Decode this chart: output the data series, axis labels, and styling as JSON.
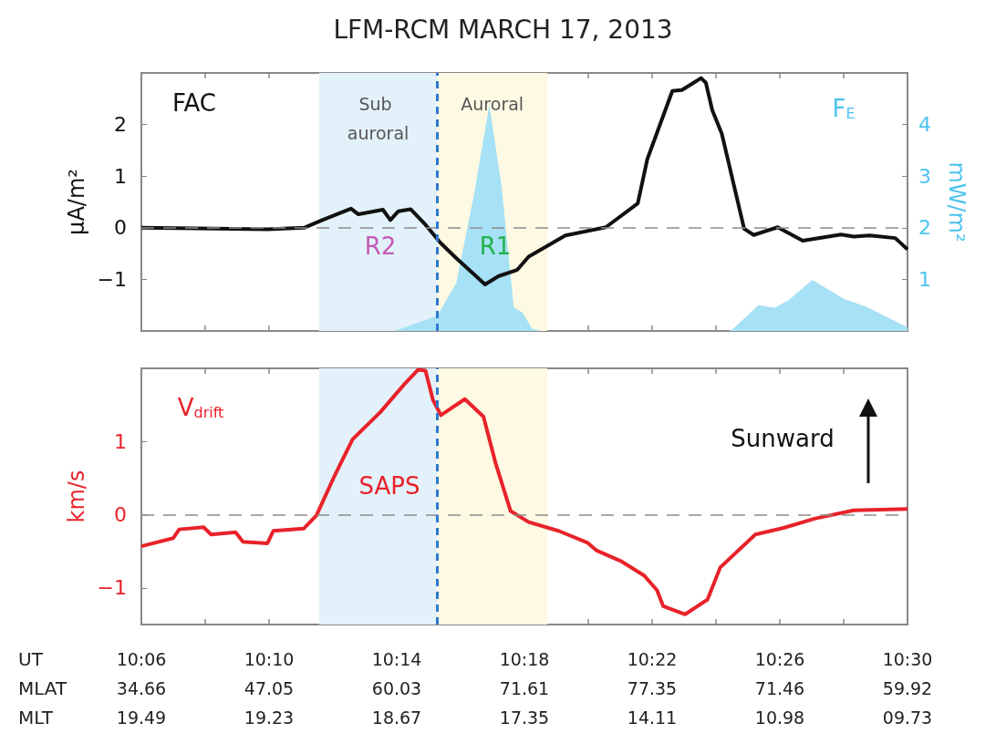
{
  "chart_data": [
    {
      "type": "line",
      "title": "LFM-RCM MARCH 17, 2013",
      "ylabel": "μA/m²",
      "y2label": "mW/m²",
      "xlim": [
        "2013-03-17T10:06",
        "2013-03-17T10:30"
      ],
      "ylim": [
        -2,
        3
      ],
      "yticks": [
        -1,
        0,
        1,
        2
      ],
      "y2lim": [
        0,
        5
      ],
      "y2ticks": [
        1,
        2,
        3,
        4
      ],
      "xticks": [
        "2013-03-17T10:06",
        "2013-03-17T10:08",
        "2013-03-17T10:10",
        "2013-03-17T10:12",
        "2013-03-17T10:14",
        "2013-03-17T10:16",
        "2013-03-17T10:18",
        "2013-03-17T10:20",
        "2013-03-17T10:22",
        "2013-03-17T10:24",
        "2013-03-17T10:26",
        "2013-03-17T10:28",
        "2013-03-17T10:30"
      ],
      "tick_labels": "y",
      "marker": "none",
      "series": [
        {
          "color": "#111111",
          "x": [
            "2013-03-17T10:06",
            "2013-03-17T10:09:57",
            "2013-03-17T10:11:06",
            "2013-03-17T10:11:40",
            "2013-03-17T10:12:34",
            "2013-03-17T10:12:48",
            "2013-03-17T10:13:34",
            "2013-03-17T10:13:48",
            "2013-03-17T10:14:03",
            "2013-03-17T10:14:26",
            "2013-03-17T10:14:54",
            "2013-03-17T10:15:22",
            "2013-03-17T10:15:52",
            "2013-03-17T10:16:26",
            "2013-03-17T10:16:46",
            "2013-03-17T10:17:11",
            "2013-03-17T10:17:46",
            "2013-03-17T10:18:08",
            "2013-03-17T10:19:17",
            "2013-03-17T10:20:33",
            "2013-03-17T10:21:33",
            "2013-03-17T10:21:51",
            "2013-03-17T10:22:38",
            "2013-03-17T10:22:56",
            "2013-03-17T10:23:32",
            "2013-03-17T10:23:41",
            "2013-03-17T10:23:53",
            "2013-03-17T10:24:11",
            "2013-03-17T10:24:53",
            "2013-03-17T10:25:11",
            "2013-03-17T10:25:56",
            "2013-03-17T10:26:43",
            "2013-03-17T10:27:55",
            "2013-03-17T10:28:19",
            "2013-03-17T10:28:49",
            "2013-03-17T10:29:37",
            "2013-03-17T10:30"
          ],
          "values": [
            0,
            -0.03,
            0,
            0.15,
            0.37,
            0.26,
            0.35,
            0.15,
            0.32,
            0.36,
            0.06,
            -0.29,
            -0.59,
            -0.91,
            -1.1,
            -0.94,
            -0.82,
            -0.56,
            -0.15,
            0.01,
            0.47,
            1.33,
            2.65,
            2.67,
            2.9,
            2.81,
            2.28,
            1.82,
            -0.02,
            -0.14,
            0.01,
            -0.25,
            -0.13,
            -0.17,
            -0.15,
            -0.2,
            -0.42
          ]
        },
        {
          "type": "area",
          "axis": "y2",
          "color": "#a6e1f5",
          "x": [
            "2013-03-17T10:06",
            "2013-03-17T10:13:56",
            "2013-03-17T10:15:16",
            "2013-03-17T10:15:52",
            "2013-03-17T10:16:26",
            "2013-03-17T10:16:54",
            "2013-03-17T10:17:17",
            "2013-03-17T10:17:40",
            "2013-03-17T10:17:57",
            "2013-03-17T10:18:14",
            "2013-03-17T10:18:30",
            "2013-03-17T10:24:24",
            "2013-03-17T10:24:32",
            "2013-03-17T10:25:20",
            "2013-03-17T10:25:50",
            "2013-03-17T10:26:16",
            "2013-03-17T10:27:01",
            "2013-03-17T10:28:01",
            "2013-03-17T10:28:43",
            "2013-03-17T10:30"
          ],
          "values": [
            0,
            0,
            0.29,
            0.93,
            2.68,
            4.38,
            2.8,
            0.46,
            0.35,
            0.05,
            0,
            0,
            0.04,
            0.5,
            0.45,
            0.59,
            0.99,
            0.62,
            0.47,
            0.07
          ]
        }
      ],
      "bands": [
        {
          "axis": "x",
          "from": "2013-03-17T10:11:34",
          "to": "2013-03-17T10:15:16",
          "label": "Sub auroral",
          "color": "#e3f1fa"
        },
        {
          "axis": "x",
          "from": "2013-03-17T10:15:16",
          "to": "2013-03-17T10:18:43",
          "label": "Auroral",
          "color": "#fdf9e2"
        }
      ],
      "ref_lines": [
        {
          "axis": "y",
          "value": 0,
          "color": "#8c8c8c",
          "line_style": "dashed"
        },
        {
          "axis": "x",
          "value": "2013-03-17T10:15:16",
          "color": "#2f78cf",
          "line_style": "dashed"
        }
      ],
      "annotations": [
        "FAC",
        "R2",
        "R1",
        "F$_{E}$"
      ]
    },
    {
      "type": "line",
      "ylabel": "km/s",
      "xlim": [
        "2013-03-17T10:06",
        "2013-03-17T10:30"
      ],
      "ylim": [
        -1.5,
        2
      ],
      "yticks": [
        -1,
        0,
        1
      ],
      "xticks": [
        {
          "value": "2013-03-17T10:06",
          "label": "10:06\n34.66\n19.49"
        },
        {
          "value": "2013-03-17T10:08",
          "label": null
        },
        {
          "value": "2013-03-17T10:10",
          "label": "10:10\n47.05\n19.23"
        },
        {
          "value": "2013-03-17T10:12",
          "label": null
        },
        {
          "value": "2013-03-17T10:14",
          "label": "10:14\n60.03\n18.67"
        },
        {
          "value": "2013-03-17T10:16",
          "label": null
        },
        {
          "value": "2013-03-17T10:18",
          "label": "10:18\n71.61\n17.35"
        },
        {
          "value": "2013-03-17T10:20",
          "label": null
        },
        {
          "value": "2013-03-17T10:22",
          "label": "10:22\n77.35\n14.11"
        },
        {
          "value": "2013-03-17T10:24",
          "label": null
        },
        {
          "value": "2013-03-17T10:26",
          "label": "10:26\n71.46\n10.98"
        },
        {
          "value": "2013-03-17T10:28",
          "label": null
        },
        {
          "value": "2013-03-17T10:30",
          "label": "10:30\n59.92\n09.73"
        }
      ],
      "marker": "none",
      "series": [
        {
          "color": "#e8222a",
          "x": [
            "2013-03-17T10:06",
            "2013-03-17T10:07",
            "2013-03-17T10:07:11",
            "2013-03-17T10:07:57",
            "2013-03-17T10:08:11",
            "2013-03-17T10:08:57",
            "2013-03-17T10:09:11",
            "2013-03-17T10:09:57",
            "2013-03-17T10:10:08",
            "2013-03-17T10:11:05",
            "2013-03-17T10:11:29",
            "2013-03-17T10:12:03",
            "2013-03-17T10:12:37",
            "2013-03-17T10:13:29",
            "2013-03-17T10:14:14",
            "2013-03-17T10:14:40",
            "2013-03-17T10:14:54",
            "2013-03-17T10:15:08",
            "2013-03-17T10:15:23",
            "2013-03-17T10:16:08",
            "2013-03-17T10:16:43",
            "2013-03-17T10:17:06",
            "2013-03-17T10:17:34",
            "2013-03-17T10:18:08",
            "2013-03-17T10:19:04",
            "2013-03-17T10:19:58",
            "2013-03-17T10:20:16",
            "2013-03-17T10:21:03",
            "2013-03-17T10:21:45",
            "2013-03-17T10:22:09",
            "2013-03-17T10:22:21",
            "2013-03-17T10:23:02",
            "2013-03-17T10:23:44",
            "2013-03-17T10:24:08",
            "2013-03-17T10:25:14",
            "2013-03-17T10:26:07",
            "2013-03-17T10:27:07",
            "2013-03-17T10:28:19",
            "2013-03-17T10:30"
          ],
          "values": [
            -0.43,
            -0.32,
            -0.2,
            -0.17,
            -0.27,
            -0.24,
            -0.37,
            -0.39,
            -0.22,
            -0.19,
            -0.01,
            0.53,
            1.03,
            1.4,
            1.78,
            1.98,
            1.97,
            1.57,
            1.36,
            1.58,
            1.34,
            0.7,
            0.05,
            -0.1,
            -0.22,
            -0.38,
            -0.49,
            -0.64,
            -0.83,
            -1.03,
            -1.25,
            -1.36,
            -1.16,
            -0.72,
            -0.27,
            -0.18,
            -0.05,
            0.06,
            0.08
          ]
        }
      ],
      "bands": [
        {
          "axis": "x",
          "from": "2013-03-17T10:11:34",
          "to": "2013-03-17T10:15:16",
          "color": "#e3f1fa"
        },
        {
          "axis": "x",
          "from": "2013-03-17T10:15:16",
          "to": "2013-03-17T10:18:43",
          "color": "#fdf9e2"
        }
      ],
      "ref_lines": [
        {
          "axis": "y",
          "value": 0,
          "color": "#8c8c8c",
          "line_style": "dashed"
        },
        {
          "axis": "x",
          "value": "2013-03-17T10:15:16",
          "color": "#2f78cf",
          "line_style": "dashed"
        }
      ],
      "annotations": [
        "V$_{drift}$",
        "SAPS",
        "Sunward",
        "UT",
        "MLAT",
        "MLT"
      ]
    }
  ]
}
